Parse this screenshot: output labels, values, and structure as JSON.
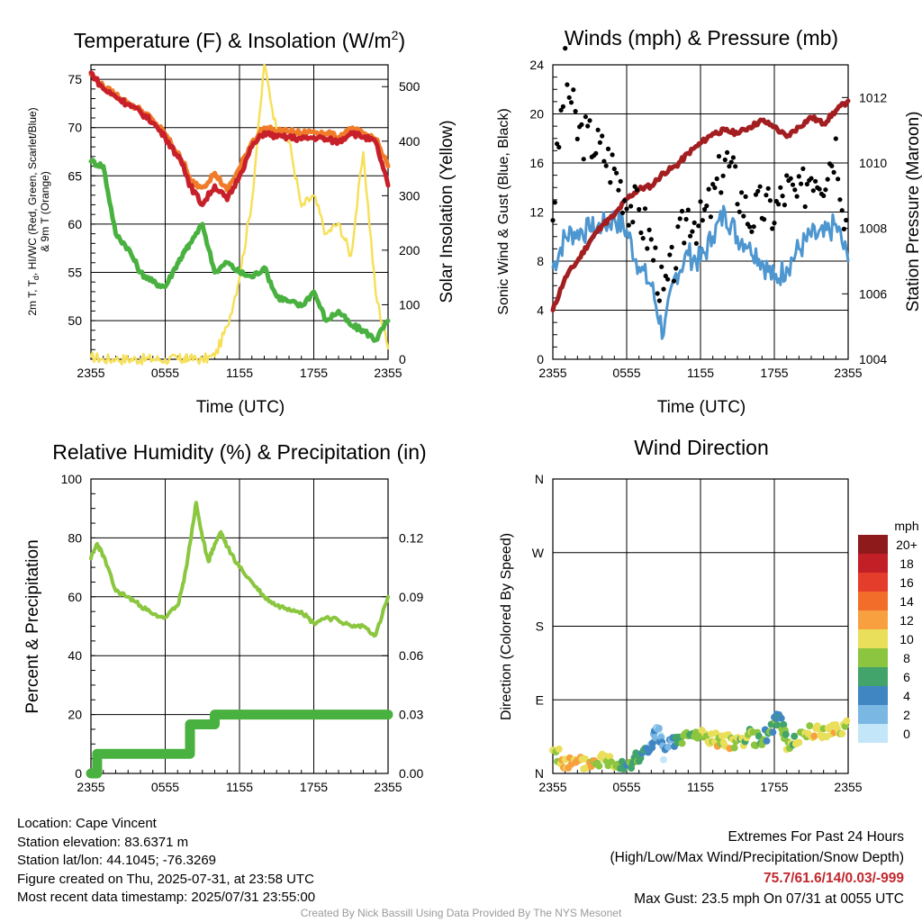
{
  "panels": {
    "temp": {
      "title": "Temperature (F) & Insolation (W/m",
      "title_sup": "2",
      "title_close": ")",
      "ylabel_line1": "2m T, T",
      "ylabel_sub": "d",
      "ylabel_line1_rest": ", HI/WC (Red, Green, Scarlet/Blue)",
      "ylabel_line2": "& 9m T (Orange)",
      "y2label": "Solar Insolation (Yellow)",
      "xlabel": "Time (UTC)"
    },
    "wind": {
      "title": "Winds (mph) & Pressure (mb)",
      "ylabel": "Sonic Wind & Gust (Blue, Black)",
      "y2label": "Station Pressure (Maroon)",
      "xlabel": "Time (UTC)"
    },
    "rh": {
      "title": "Relative Humidity (%) & Precipitation (in)",
      "ylabel": "Percent & Precipitation"
    },
    "dir": {
      "title": "Wind Direction",
      "ylabel": "Direction (Colored By Speed)",
      "colorbar_title": "mph"
    }
  },
  "footer": {
    "location": "Location: Cape Vincent",
    "elevation": "Station elevation: 83.6371 m",
    "latlon": "Station lat/lon: 44.1045; -76.3269",
    "created": "Figure created on Thu, 2025-07-31, at 23:58 UTC",
    "recent": "Most recent data timestamp: 2025/07/31 23:55:00",
    "extremes_title": "Extremes For Past 24 Hours",
    "extremes_sub": "(High/Low/Max Wind/Precipitation/Snow Depth)",
    "extremes_values": "75.7/61.6/14/0.03/-999",
    "max_gust": "Max Gust: 23.5 mph On 07/31 at 0055 UTC",
    "credit": "Created By Nick Bassill Using Data Provided By The NYS Mesonet"
  },
  "colors": {
    "temp_red": "#c8202a",
    "temp_orange": "#f07c2a",
    "dewpoint_green": "#49b13f",
    "insolation_yellow": "#f6e05a",
    "wind_blue": "#4d96d0",
    "gust_black": "#000000",
    "pressure_maroon": "#a31e20",
    "rh_lightgreen": "#8bc63f",
    "precip_green": "#49b13f",
    "extremes_red": "#c0272d"
  },
  "chart_data": [
    {
      "id": "temperature",
      "type": "line",
      "title": "Temperature (F) & Insolation (W/m2)",
      "xlabel": "Time (UTC)",
      "ylabel": "2m T, Td, HI/WC (Red, Green, Scarlet/Blue) & 9m T (Orange)",
      "y2label": "Solar Insolation (Yellow)",
      "x_ticks": [
        "2355",
        "0555",
        "1155",
        "1755",
        "2355"
      ],
      "ylim": [
        46,
        76.5
      ],
      "y_ticks": [
        50,
        55,
        60,
        65,
        70,
        75
      ],
      "y2lim": [
        0,
        540
      ],
      "y2_ticks": [
        0,
        100,
        200,
        300,
        400,
        500
      ],
      "x": [
        0,
        1,
        2,
        3,
        4,
        5,
        6,
        7,
        7.5,
        8,
        9,
        10,
        11,
        12,
        13,
        14,
        15,
        16,
        17,
        18,
        19,
        20,
        21,
        22,
        23,
        24
      ],
      "series": [
        {
          "name": "2m T",
          "axis": "left",
          "color": "#c8202a",
          "values": [
            75.7,
            74,
            73.2,
            72.4,
            71.6,
            70.5,
            69,
            67,
            66,
            64,
            62,
            64,
            62.5,
            65,
            68,
            69.5,
            69,
            69,
            68.8,
            69,
            68.8,
            68.5,
            69.5,
            69,
            68.5,
            64
          ]
        },
        {
          "name": "9m T",
          "axis": "left",
          "color": "#f07c2a",
          "values": [
            75.5,
            74.2,
            73.4,
            72.6,
            71.8,
            70.8,
            69.3,
            67.3,
            66.3,
            64.5,
            63.8,
            65.3,
            63.5,
            65.8,
            68.5,
            70,
            69.6,
            69.6,
            69.4,
            69.6,
            69.4,
            69,
            69.8,
            69.4,
            68.8,
            66
          ]
        },
        {
          "name": "Td",
          "axis": "left",
          "color": "#49b13f",
          "values": [
            66.5,
            66,
            59,
            57.5,
            55,
            54,
            53.5,
            56,
            57,
            58,
            60,
            55,
            56,
            55,
            54.5,
            55.5,
            52.5,
            52,
            51.5,
            53,
            50,
            51,
            49.5,
            49,
            48,
            50
          ]
        },
        {
          "name": "Solar Insolation",
          "axis": "right",
          "color": "#f6e05a",
          "values": [
            5,
            0,
            0,
            0,
            0,
            0,
            0,
            0,
            0,
            0,
            0,
            5,
            60,
            150,
            290,
            540,
            420,
            400,
            280,
            300,
            230,
            250,
            190,
            380,
            120,
            20
          ]
        }
      ]
    },
    {
      "id": "winds",
      "type": "line",
      "title": "Winds (mph) & Pressure (mb)",
      "xlabel": "Time (UTC)",
      "ylabel": "Sonic Wind & Gust (Blue, Black)",
      "y2label": "Station Pressure (Maroon)",
      "x_ticks": [
        "2355",
        "0555",
        "1155",
        "1755",
        "2355"
      ],
      "ylim": [
        0,
        24
      ],
      "y_ticks": [
        0,
        4,
        8,
        12,
        16,
        20,
        24
      ],
      "y2lim": [
        1004,
        1013
      ],
      "y2_ticks": [
        1004,
        1006,
        1008,
        1010,
        1012
      ],
      "x": [
        0,
        1,
        2,
        3,
        4,
        5,
        6,
        7,
        8,
        9,
        10,
        11,
        12,
        13,
        14,
        15,
        16,
        17,
        18,
        19,
        20,
        21,
        22,
        23,
        24
      ],
      "series": [
        {
          "name": "Sonic Wind",
          "axis": "left",
          "color": "#4d96d0",
          "values": [
            7.5,
            10,
            10.5,
            10.5,
            10.8,
            11.5,
            10.5,
            7.5,
            6,
            2,
            7,
            8.5,
            8,
            10,
            12,
            10,
            9.5,
            8,
            6.5,
            7.5,
            9,
            10,
            10,
            11,
            8
          ]
        },
        {
          "name": "Gust",
          "axis": "left",
          "color": "#000000",
          "values": [
            12,
            23.5,
            18.5,
            18,
            17,
            15.5,
            13,
            12,
            9.5,
            5,
            8.5,
            12,
            11,
            13,
            16.5,
            14,
            11.5,
            12.5,
            12,
            14,
            13,
            15.5,
            15,
            17.5,
            10
          ]
        },
        {
          "name": "Station Pressure",
          "axis": "right",
          "color": "#a31e20",
          "values": [
            1005.5,
            1006.5,
            1007,
            1007.6,
            1008.1,
            1008.4,
            1008.9,
            1009.2,
            1009.3,
            1009.7,
            1009.9,
            1010.3,
            1010.6,
            1010.9,
            1011,
            1010.9,
            1011.1,
            1011.3,
            1011.1,
            1010.8,
            1011.1,
            1011.4,
            1011.2,
            1011.6,
            1011.9
          ]
        }
      ]
    },
    {
      "id": "rh_precip",
      "type": "line",
      "title": "Relative Humidity (%) & Precipitation (in)",
      "ylabel": "Percent & Precipitation",
      "x_ticks": [
        "2355",
        "0555",
        "1155",
        "1755",
        "2355"
      ],
      "ylim": [
        0,
        100
      ],
      "y_ticks": [
        0,
        20,
        40,
        60,
        80,
        100
      ],
      "y2lim": [
        0,
        0.15
      ],
      "y2_ticks": [
        "0.00",
        "0.03",
        "0.06",
        "0.09",
        "0.12"
      ],
      "x": [
        0,
        0.5,
        1,
        2,
        3,
        4,
        5,
        6,
        7,
        7.5,
        8,
        8.5,
        9,
        9.5,
        10,
        10.5,
        11,
        12,
        13,
        14,
        15,
        16,
        17,
        18,
        19,
        20,
        21,
        22,
        23,
        24
      ],
      "series": [
        {
          "name": "Relative Humidity",
          "axis": "left",
          "color": "#8bc63f",
          "values": [
            73,
            78,
            74,
            62,
            60,
            57,
            54,
            53,
            57,
            65,
            78,
            92,
            80,
            72,
            78,
            82,
            77,
            70,
            65,
            60,
            57,
            56,
            55,
            51,
            53,
            52,
            50,
            50,
            47,
            60
          ]
        },
        {
          "name": "Precipitation",
          "axis": "right",
          "color": "#49b13f",
          "values": [
            0,
            0.01,
            0.01,
            0.01,
            0.01,
            0.01,
            0.01,
            0.01,
            0.01,
            0.01,
            0.025,
            0.025,
            0.025,
            0.025,
            0.03,
            0.03,
            0.03,
            0.03,
            0.03,
            0.03,
            0.03,
            0.03,
            0.03,
            0.03,
            0.03,
            0.03,
            0.03,
            0.03,
            0.03,
            0.03
          ]
        }
      ]
    },
    {
      "id": "wind_direction",
      "type": "scatter",
      "title": "Wind Direction",
      "ylabel": "Direction (Colored By Speed)",
      "x_ticks": [
        "2355",
        "0555",
        "1155",
        "1755",
        "2355"
      ],
      "y_ticks": [
        "N",
        "E",
        "S",
        "W",
        "N"
      ],
      "ylim": [
        0,
        360
      ],
      "colorbar": {
        "title": "mph",
        "labels": [
          "20+",
          "18",
          "16",
          "14",
          "12",
          "10",
          "8",
          "6",
          "4",
          "2",
          "0"
        ],
        "colors": [
          "#8e1a1c",
          "#c21f26",
          "#e43d2b",
          "#f26c2a",
          "#f8a040",
          "#e9df5a",
          "#8cc540",
          "#42a46a",
          "#3f86c2",
          "#7bb7e3",
          "#c3e6f8"
        ]
      },
      "x": [
        0,
        1,
        2,
        3,
        4,
        5,
        6,
        7,
        8,
        8.5,
        9,
        10,
        11,
        12,
        13,
        14,
        15,
        16,
        17,
        18,
        18.5,
        19,
        20,
        21,
        22,
        23,
        24
      ],
      "series": [
        {
          "name": "Direction",
          "values": [
            30,
            12,
            12,
            12,
            18,
            15,
            12,
            18,
            35,
            55,
            25,
            40,
            45,
            48,
            42,
            38,
            40,
            45,
            40,
            60,
            70,
            35,
            45,
            50,
            50,
            55,
            60
          ]
        },
        {
          "name": "Speed",
          "values": [
            9,
            12,
            12,
            11,
            10,
            9,
            7,
            7,
            5,
            3,
            3,
            6,
            8,
            9,
            10,
            11,
            10,
            9,
            8,
            7,
            6,
            9,
            10,
            10,
            11,
            12,
            9
          ]
        }
      ]
    }
  ]
}
